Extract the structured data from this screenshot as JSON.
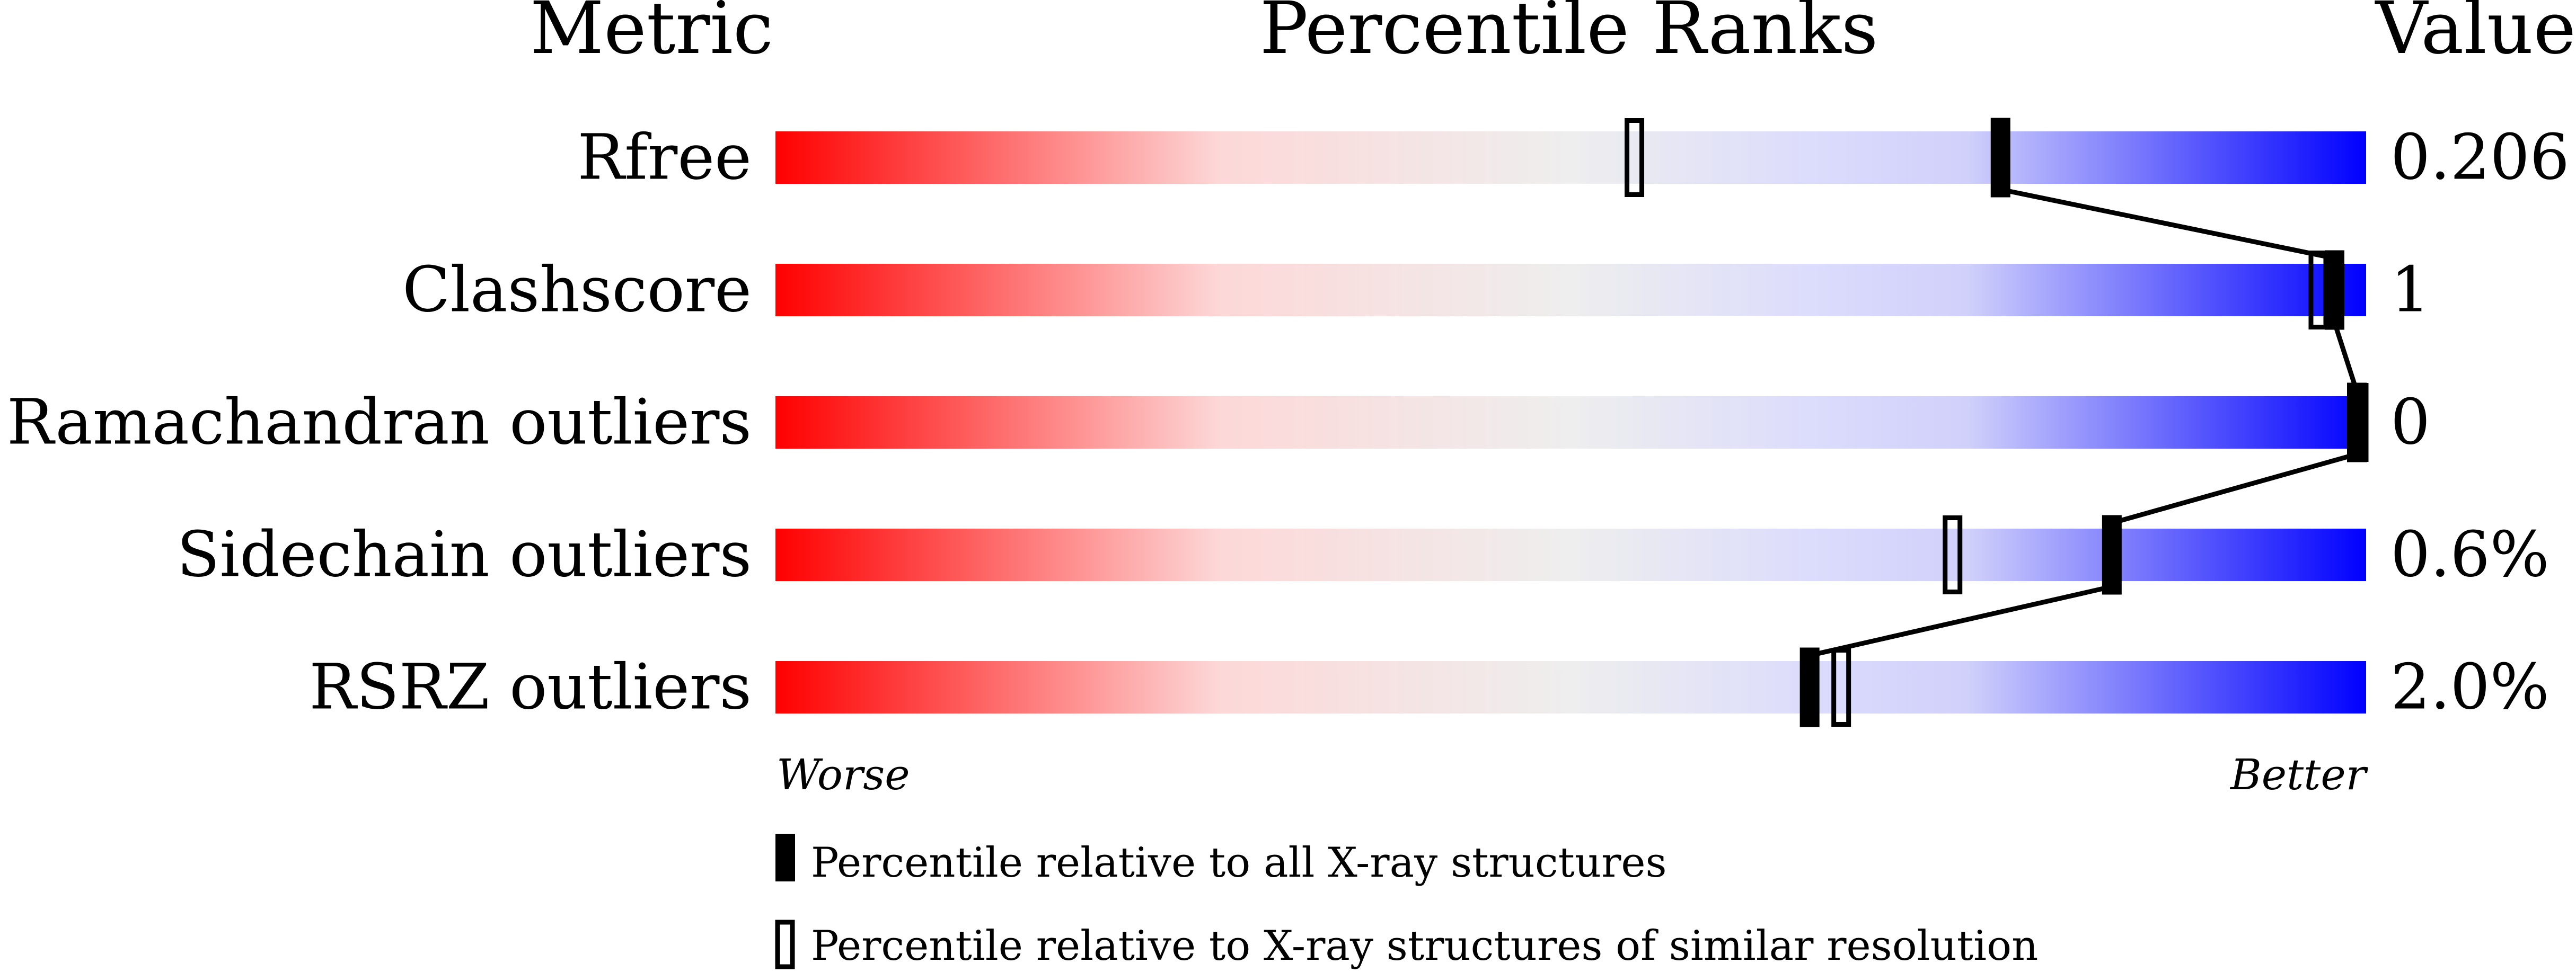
{
  "chart_data": {
    "type": "slider",
    "headers": {
      "metric": "Metric",
      "percentile": "Percentile Ranks",
      "value": "Value"
    },
    "axis": {
      "min": 0,
      "max": 100,
      "left_label": "Worse",
      "right_label": "Better"
    },
    "gradient_colors": {
      "worse": "#ff0000",
      "middle": "#eeeeee",
      "better": "#0000ff"
    },
    "metrics": [
      {
        "name": "Rfree",
        "value": "0.206",
        "percentile_all": 77,
        "percentile_similar": 54
      },
      {
        "name": "Clashscore",
        "value": "1",
        "percentile_all": 98,
        "percentile_similar": 97
      },
      {
        "name": "Ramachandran outliers",
        "value": "0",
        "percentile_all": 100,
        "percentile_similar": 100
      },
      {
        "name": "Sidechain outliers",
        "value": "0.6%",
        "percentile_all": 84,
        "percentile_similar": 74
      },
      {
        "name": "RSRZ outliers",
        "value": "2.0%",
        "percentile_all": 65,
        "percentile_similar": 67
      }
    ],
    "legend": [
      {
        "marker": "filled",
        "label": "Percentile relative to all X-ray structures"
      },
      {
        "marker": "open",
        "label": "Percentile relative to X-ray structures of similar resolution"
      }
    ]
  }
}
